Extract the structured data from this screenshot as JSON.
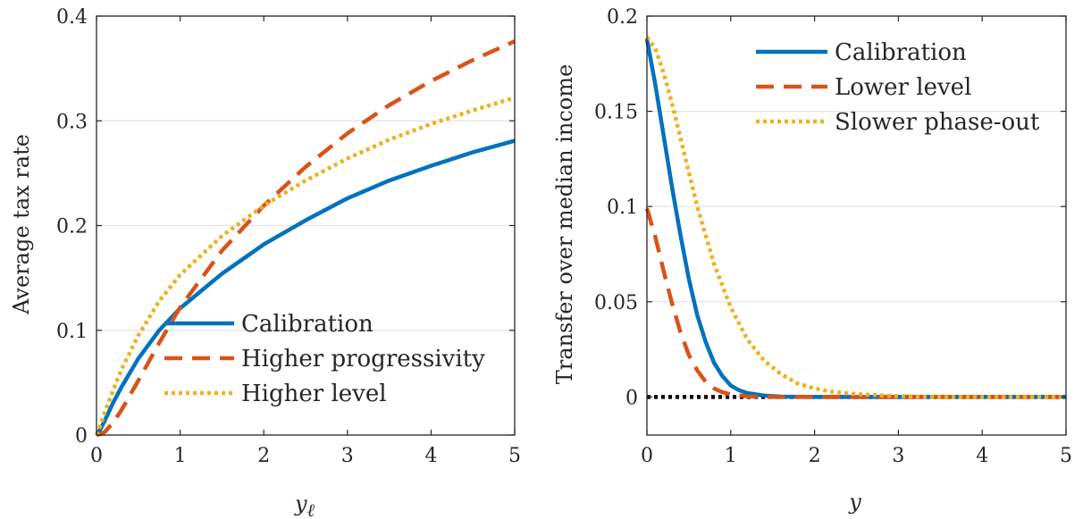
{
  "chart_data": [
    {
      "type": "line",
      "title": "",
      "xlabel": "y",
      "xlabel_sub": "ℓ",
      "ylabel": "Average tax rate",
      "xlim": [
        0,
        5
      ],
      "ylim": [
        0,
        0.4
      ],
      "xticks": [
        0,
        1,
        2,
        3,
        4,
        5
      ],
      "yticks": [
        0,
        0.1,
        0.2,
        0.3,
        0.4
      ],
      "xtick_labels": [
        "0",
        "1",
        "2",
        "3",
        "4",
        "5"
      ],
      "ytick_labels": [
        "0",
        "0.1",
        "0.2",
        "0.3",
        "0.4"
      ],
      "grid": "horizontal",
      "legend_position": "bottom-right",
      "series": [
        {
          "name": "Calibration",
          "color": "#0072BD",
          "style": "solid",
          "x": [
            0,
            0.05,
            0.1,
            0.2,
            0.3,
            0.5,
            0.75,
            1,
            1.5,
            2,
            2.5,
            3,
            3.5,
            4,
            4.5,
            5
          ],
          "y": [
            0,
            0.006,
            0.014,
            0.031,
            0.046,
            0.073,
            0.1,
            0.121,
            0.154,
            0.182,
            0.205,
            0.226,
            0.243,
            0.257,
            0.27,
            0.281
          ]
        },
        {
          "name": "Higher progressivity",
          "color": "#D95319",
          "style": "dashed",
          "x": [
            0,
            0.05,
            0.1,
            0.2,
            0.3,
            0.5,
            0.75,
            1,
            1.5,
            2,
            2.5,
            3,
            3.5,
            4,
            4.5,
            5
          ],
          "y": [
            0,
            0.001,
            0.003,
            0.012,
            0.024,
            0.052,
            0.088,
            0.122,
            0.176,
            0.219,
            0.256,
            0.288,
            0.315,
            0.338,
            0.358,
            0.376
          ]
        },
        {
          "name": "Higher level",
          "color": "#EDB120",
          "style": "dotted",
          "x": [
            0,
            0.05,
            0.1,
            0.2,
            0.3,
            0.5,
            0.75,
            1,
            1.5,
            2,
            2.5,
            3,
            3.5,
            4,
            4.5,
            5
          ],
          "y": [
            0,
            0.01,
            0.022,
            0.043,
            0.063,
            0.095,
            0.128,
            0.153,
            0.19,
            0.219,
            0.243,
            0.264,
            0.282,
            0.297,
            0.31,
            0.322
          ]
        }
      ]
    },
    {
      "type": "line",
      "title": "",
      "xlabel": "y",
      "ylabel": "Transfer over median income",
      "xlim": [
        0,
        5
      ],
      "ylim": [
        -0.02,
        0.2
      ],
      "xticks": [
        0,
        1,
        2,
        3,
        4,
        5
      ],
      "yticks": [
        0,
        0.05,
        0.1,
        0.15,
        0.2
      ],
      "xtick_labels": [
        "0",
        "1",
        "2",
        "3",
        "4",
        "5"
      ],
      "ytick_labels": [
        "0",
        "0.05",
        "0.1",
        "0.15",
        "0.2"
      ],
      "grid": "horizontal",
      "legend_position": "top-right",
      "series": [
        {
          "name": "Calibration",
          "color": "#0072BD",
          "style": "solid",
          "x": [
            0,
            0.1,
            0.2,
            0.3,
            0.4,
            0.5,
            0.6,
            0.7,
            0.8,
            0.9,
            1.0,
            1.1,
            1.2,
            1.4,
            1.6,
            2.0,
            3.0,
            4.0,
            5.0
          ],
          "y": [
            0.188,
            0.164,
            0.137,
            0.11,
            0.085,
            0.062,
            0.043,
            0.029,
            0.018,
            0.011,
            0.006,
            0.0035,
            0.002,
            0.0007,
            0.0002,
            0,
            0,
            0,
            0
          ]
        },
        {
          "name": "Lower level",
          "color": "#D95319",
          "style": "dashed",
          "x": [
            0,
            0.1,
            0.2,
            0.3,
            0.4,
            0.5,
            0.6,
            0.7,
            0.8,
            0.9,
            1.0,
            1.2,
            1.5,
            2.0,
            3.0,
            4.0,
            5.0
          ],
          "y": [
            0.099,
            0.084,
            0.066,
            0.049,
            0.034,
            0.022,
            0.014,
            0.008,
            0.0045,
            0.0025,
            0.0013,
            0.0003,
            0,
            0,
            0,
            0,
            0
          ]
        },
        {
          "name": "Slower phase-out",
          "color": "#EDB120",
          "style": "dotted",
          "x": [
            0,
            0.1,
            0.2,
            0.3,
            0.4,
            0.5,
            0.6,
            0.8,
            1.0,
            1.2,
            1.4,
            1.6,
            1.8,
            2.0,
            2.2,
            2.5,
            3.0,
            3.5,
            4.0,
            5.0
          ],
          "y": [
            0.189,
            0.183,
            0.17,
            0.154,
            0.136,
            0.118,
            0.1,
            0.07,
            0.047,
            0.03,
            0.019,
            0.012,
            0.007,
            0.0045,
            0.0028,
            0.0015,
            0.0004,
            0,
            0,
            0
          ]
        },
        {
          "name": "",
          "color": "#000000",
          "style": "dotted-reference",
          "x": [
            0,
            5
          ],
          "y": [
            0,
            0
          ]
        }
      ]
    }
  ]
}
